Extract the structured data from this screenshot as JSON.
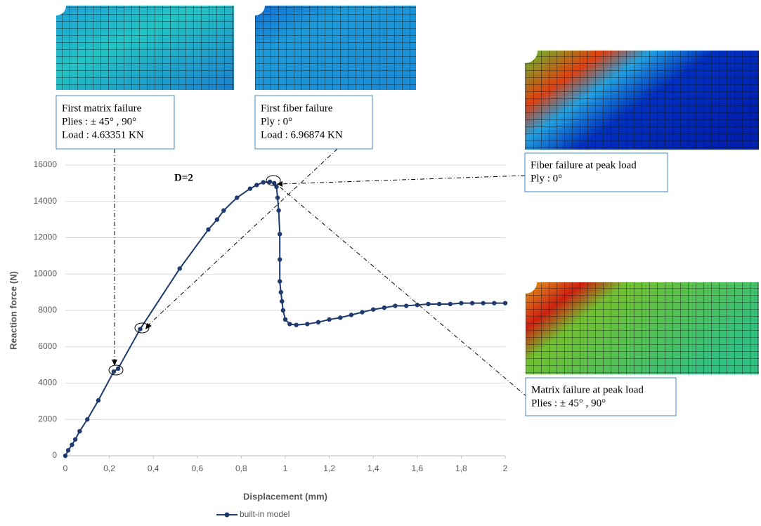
{
  "chart_data": {
    "type": "line",
    "x_label": "Displacement (mm)",
    "y_label": "Reaction force (N)",
    "xlim": [
      0,
      2
    ],
    "ylim": [
      0,
      16000
    ],
    "xticks": [
      0,
      {
        "value": 0.2,
        "label": "0,2"
      },
      {
        "value": 0.4,
        "label": "0,4"
      },
      {
        "value": 0.6,
        "label": "0,6"
      },
      {
        "value": 0.8,
        "label": "0,8"
      },
      1,
      {
        "value": 1.2,
        "label": "1,2"
      },
      {
        "value": 1.4,
        "label": "1,4"
      },
      {
        "value": 1.6,
        "label": "1,6"
      },
      {
        "value": 1.8,
        "label": "1,8"
      },
      2
    ],
    "yticks": [
      0,
      2000,
      4000,
      6000,
      8000,
      10000,
      12000,
      14000,
      16000
    ],
    "grid": true,
    "x": [
      0,
      0.013,
      0.03,
      0.045,
      0.065,
      0.1,
      0.15,
      0.22,
      0.24,
      0.34,
      0.52,
      0.65,
      0.69,
      0.72,
      0.78,
      0.84,
      0.87,
      0.9,
      0.93,
      0.95,
      0.96,
      0.965,
      0.97,
      0.975,
      0.975,
      0.975,
      0.98,
      0.985,
      0.99,
      1.0,
      1.02,
      1.05,
      1.1,
      1.15,
      1.2,
      1.25,
      1.3,
      1.35,
      1.4,
      1.45,
      1.5,
      1.55,
      1.6,
      1.65,
      1.7,
      1.75,
      1.8,
      1.85,
      1.9,
      1.95,
      2.0
    ],
    "series": [
      {
        "name": "built-in model",
        "color": "#1f3a6e",
        "values": [
          0,
          300,
          600,
          900,
          1350,
          2000,
          3050,
          4630,
          4800,
          6970,
          10300,
          12450,
          13000,
          13500,
          14200,
          14700,
          14900,
          15050,
          15080,
          15000,
          14800,
          14200,
          13500,
          12200,
          10800,
          9600,
          9000,
          8500,
          8000,
          7500,
          7250,
          7200,
          7250,
          7350,
          7500,
          7600,
          7750,
          7900,
          8050,
          8150,
          8250,
          8250,
          8300,
          8350,
          8350,
          8350,
          8400,
          8400,
          8400,
          8400,
          8400
        ]
      }
    ],
    "annotations": [
      {
        "text": "D=2"
      },
      {
        "lines": [
          "First matrix failure",
          "Plies : ± 45° , 90°",
          "Load : 4.63351 KN"
        ]
      },
      {
        "lines": [
          "First fiber failure",
          "Ply : 0°",
          "Load : 6.96874 KN"
        ]
      },
      {
        "lines": [
          "Fiber failure at peak load",
          "Ply : 0°"
        ]
      },
      {
        "lines": [
          "Matrix failure at peak load",
          "Plies : ± 45° , 90°"
        ]
      }
    ]
  }
}
